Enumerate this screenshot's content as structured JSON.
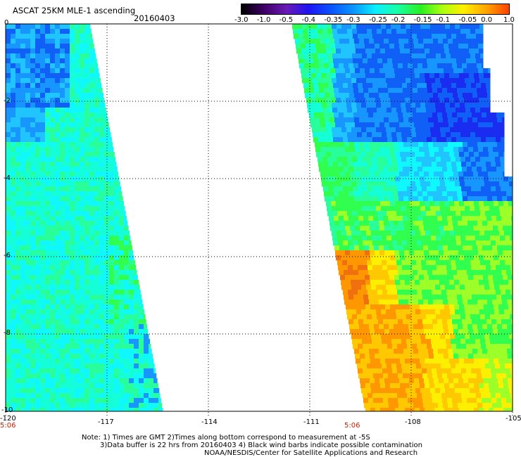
{
  "header": {
    "product": "ASCAT 25KM MLE-1 ascending",
    "date": "20160403"
  },
  "colorbar": {
    "labels": [
      "-3.0",
      "-1.0",
      "-0.5",
      "-0.4",
      "-0.35",
      "-0.3",
      "-0.25",
      "-0.2",
      "-0.15",
      "-0.1",
      "-0.05",
      "0.0",
      "1.0"
    ],
    "colors": [
      "#000000",
      "#3c0060",
      "#6a1ab8",
      "#1e14f0",
      "#0a50ff",
      "#0a96ff",
      "#0aeeff",
      "#18ffaa",
      "#28f020",
      "#aaff10",
      "#fff000",
      "#ffa000",
      "#ff4000"
    ]
  },
  "map": {
    "lon_range": [
      -120,
      -105
    ],
    "lat_range": [
      -10,
      0
    ],
    "x_ticks": [
      "-120",
      "-117",
      "-114",
      "-111",
      "-108",
      "-105"
    ],
    "y_ticks": [
      "0",
      "-2",
      "-4",
      "-6",
      "-8",
      "-10"
    ],
    "pass_times": [
      "5:06",
      "5:06"
    ],
    "swath_colors": {
      "blue_dark": "#1a2cf0",
      "blue": "#1060f8",
      "blue_light": "#1896ff",
      "sky": "#20c4ff",
      "cyan": "#10f8ff",
      "aqua": "#14ffd8",
      "green_aqua": "#28ff9a",
      "green": "#30ff50",
      "lime": "#9cff28",
      "yellow": "#fcf000",
      "yellow_orange": "#ffc800",
      "orange": "#ff9800",
      "orange_dark": "#f07010"
    }
  },
  "notes": {
    "line1": "Note: 1) Times are GMT 2)Times along bottom correspond to measurement at -5S",
    "line2": "3)Data buffer is 22 hrs from 20160403 4) Black wind barbs indicate possible contamination",
    "line3": "NOAA/NESDIS/Center for Satellite Applications and Research"
  }
}
